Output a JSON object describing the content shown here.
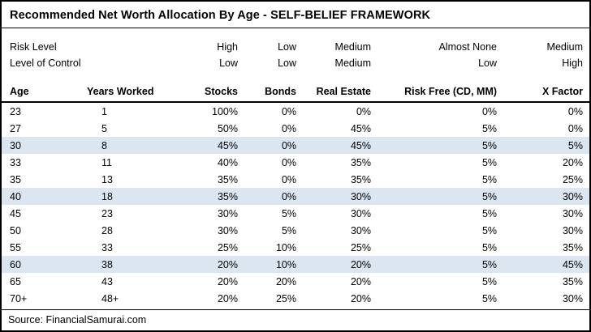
{
  "chart_data": {
    "type": "table",
    "title": "Recommended Net Worth Allocation By Age - SELF-BELIEF FRAMEWORK",
    "meta_rows": [
      {
        "name": "risk-level-row",
        "label": "Risk Level",
        "values": [
          "High",
          "Low",
          "Medium",
          "Almost None",
          "Medium"
        ]
      },
      {
        "name": "level-of-control-row",
        "label": "Level of Control",
        "values": [
          "Low",
          "Low",
          "Medium",
          "Low",
          "High"
        ]
      }
    ],
    "columns": [
      "Age",
      "Years Worked",
      "Stocks",
      "Bonds",
      "Real Estate",
      "Risk Free (CD, MM)",
      "X Factor"
    ],
    "rows": [
      [
        "23",
        "1",
        "100%",
        "0%",
        "0%",
        "0%",
        "0%"
      ],
      [
        "27",
        "5",
        "50%",
        "0%",
        "45%",
        "5%",
        "0%"
      ],
      [
        "30",
        "8",
        "45%",
        "0%",
        "45%",
        "5%",
        "5%"
      ],
      [
        "33",
        "11",
        "40%",
        "0%",
        "35%",
        "5%",
        "20%"
      ],
      [
        "35",
        "13",
        "35%",
        "0%",
        "35%",
        "5%",
        "25%"
      ],
      [
        "40",
        "18",
        "35%",
        "0%",
        "30%",
        "5%",
        "30%"
      ],
      [
        "45",
        "23",
        "30%",
        "5%",
        "30%",
        "5%",
        "30%"
      ],
      [
        "50",
        "28",
        "30%",
        "5%",
        "30%",
        "5%",
        "30%"
      ],
      [
        "55",
        "33",
        "25%",
        "10%",
        "25%",
        "5%",
        "35%"
      ],
      [
        "60",
        "38",
        "20%",
        "10%",
        "20%",
        "5%",
        "45%"
      ],
      [
        "65",
        "43",
        "20%",
        "20%",
        "20%",
        "5%",
        "35%"
      ],
      [
        "70+",
        "48+",
        "20%",
        "25%",
        "20%",
        "5%",
        "30%"
      ]
    ],
    "highlighted_ages": [
      "30",
      "40",
      "60"
    ],
    "source": "Source: FinancialSamurai.com"
  },
  "colors": {
    "row_highlight": "#dce6f1",
    "border": "#000000",
    "background": "#ffffff",
    "text": "#000000"
  }
}
